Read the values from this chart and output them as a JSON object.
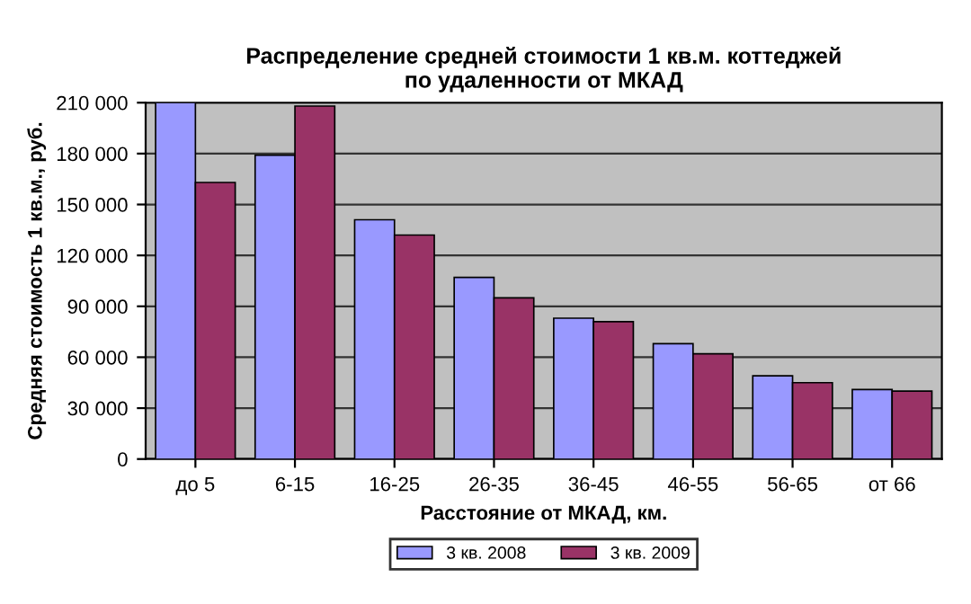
{
  "chart_data": {
    "type": "bar",
    "title": "Распределение средней стоимости 1 кв.м. коттеджей\nпо удаленности от МКАД",
    "xlabel": "Расстояние от МКАД, км.",
    "ylabel": "Средняя стоимость 1 кв.м., руб.",
    "categories": [
      "до 5",
      "6-15",
      "16-25",
      "26-35",
      "36-45",
      "46-55",
      "56-65",
      "от 66"
    ],
    "series": [
      {
        "name": "3 кв. 2008",
        "color": "#9999ff",
        "values": [
          210000,
          179000,
          141000,
          107000,
          83000,
          68000,
          49000,
          41000
        ]
      },
      {
        "name": "3 кв. 2009",
        "color": "#993366",
        "values": [
          163000,
          208000,
          132000,
          95000,
          81000,
          62000,
          45000,
          40000
        ]
      }
    ],
    "ylim": [
      0,
      210000
    ],
    "yticks": [
      {
        "value": 0,
        "label": "0"
      },
      {
        "value": 30000,
        "label": "30 000"
      },
      {
        "value": 60000,
        "label": "60 000"
      },
      {
        "value": 90000,
        "label": "90 000"
      },
      {
        "value": 120000,
        "label": "120 000"
      },
      {
        "value": 150000,
        "label": "150 000"
      },
      {
        "value": 180000,
        "label": "180 000"
      },
      {
        "value": 210000,
        "label": "210 000"
      }
    ],
    "grid": "y",
    "legend": "bottom"
  }
}
